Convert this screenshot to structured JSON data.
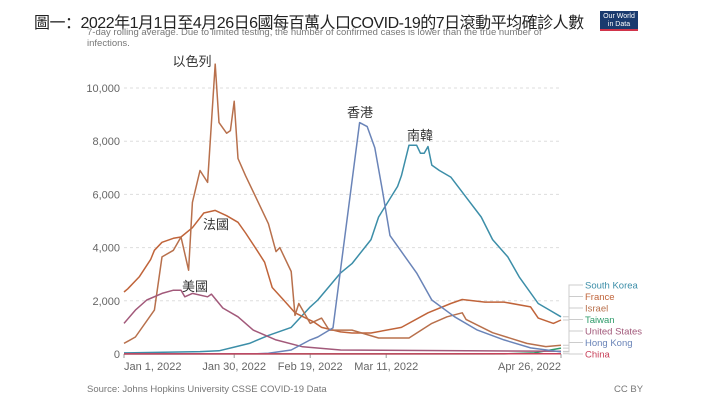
{
  "title": "圖一：2022年1月1日至4月26日6國每百萬人口COVID-19的7日滾動平均確診人數",
  "subtitle": "7-day rolling average. Due to limited testing, the number of confirmed cases is lower than the true number of infections.",
  "logo": "Our World in Data",
  "source": "Source: Johns Hopkins University CSSE COVID-19 Data",
  "license": "CC BY",
  "chart_data": {
    "type": "line",
    "title": "圖一：2022年1月1日至4月26日6國每百萬人口COVID-19的7日滾動平均確診人數",
    "xlim": [
      "2022-01-01",
      "2022-04-26"
    ],
    "ylim": [
      0,
      10000
    ],
    "grid": true,
    "legend": "right",
    "x_ticks": [
      "Jan 1, 2022",
      "Jan 30, 2022",
      "Feb 19, 2022",
      "Mar 11, 2022",
      "Apr 26, 2022"
    ],
    "x_tick_dates": [
      "2022-01-01",
      "2022-01-30",
      "2022-02-19",
      "2022-03-11",
      "2022-04-26"
    ],
    "y_ticks": [
      "0",
      "2,000",
      "4,000",
      "6,000",
      "8,000",
      "10,000"
    ],
    "y_tick_values": [
      0,
      2000,
      4000,
      6000,
      8000,
      10000
    ],
    "annotations": [
      {
        "text": "以色列",
        "series": "Israel"
      },
      {
        "text": "法國",
        "series": "France"
      },
      {
        "text": "美國",
        "series": "United States"
      },
      {
        "text": "香港",
        "series": "Hong Kong"
      },
      {
        "text": "南韓",
        "series": "South Korea"
      }
    ],
    "series": [
      {
        "name": "South Korea",
        "color": "#3c8ea8",
        "points": [
          [
            "2022-01-01",
            40
          ],
          [
            "2022-01-21",
            90
          ],
          [
            "2022-01-26",
            120
          ],
          [
            "2022-01-30",
            260
          ],
          [
            "2022-02-03",
            400
          ],
          [
            "2022-02-08",
            700
          ],
          [
            "2022-02-14",
            1000
          ],
          [
            "2022-02-19",
            1770
          ],
          [
            "2022-02-21",
            2030
          ],
          [
            "2022-02-27",
            3050
          ],
          [
            "2022-03-02",
            3400
          ],
          [
            "2022-03-07",
            4300
          ],
          [
            "2022-03-09",
            5150
          ],
          [
            "2022-03-14",
            6300
          ],
          [
            "2022-03-15",
            6700
          ],
          [
            "2022-03-17",
            7850
          ],
          [
            "2022-03-19",
            7850
          ],
          [
            "2022-03-20",
            7550
          ],
          [
            "2022-03-21",
            7550
          ],
          [
            "2022-03-22",
            7800
          ],
          [
            "2022-03-23",
            7100
          ],
          [
            "2022-03-25",
            6900
          ],
          [
            "2022-03-28",
            6650
          ],
          [
            "2022-04-01",
            5900
          ],
          [
            "2022-04-05",
            5150
          ],
          [
            "2022-04-08",
            4300
          ],
          [
            "2022-04-12",
            3650
          ],
          [
            "2022-04-15",
            2900
          ],
          [
            "2022-04-20",
            1900
          ],
          [
            "2022-04-23",
            1650
          ],
          [
            "2022-04-26",
            1400
          ]
        ]
      },
      {
        "name": "France",
        "color": "#c0643a",
        "points": [
          [
            "2022-01-01",
            2330
          ],
          [
            "2022-01-02",
            2450
          ],
          [
            "2022-01-05",
            2900
          ],
          [
            "2022-01-08",
            3550
          ],
          [
            "2022-01-09",
            3900
          ],
          [
            "2022-01-11",
            4200
          ],
          [
            "2022-01-14",
            4350
          ],
          [
            "2022-01-16",
            4400
          ],
          [
            "2022-01-19",
            4750
          ],
          [
            "2022-01-22",
            5300
          ],
          [
            "2022-01-25",
            5400
          ],
          [
            "2022-01-28",
            5200
          ],
          [
            "2022-01-31",
            4950
          ],
          [
            "2022-02-02",
            4550
          ],
          [
            "2022-02-05",
            3900
          ],
          [
            "2022-02-07",
            3450
          ],
          [
            "2022-02-09",
            2500
          ],
          [
            "2022-02-12",
            2030
          ],
          [
            "2022-02-15",
            1550
          ],
          [
            "2022-02-20",
            1200
          ],
          [
            "2022-02-22",
            1000
          ],
          [
            "2022-02-27",
            830
          ],
          [
            "2022-03-02",
            790
          ],
          [
            "2022-03-07",
            790
          ],
          [
            "2022-03-15",
            1000
          ],
          [
            "2022-03-22",
            1550
          ],
          [
            "2022-03-28",
            1900
          ],
          [
            "2022-03-31",
            2050
          ],
          [
            "2022-04-06",
            1950
          ],
          [
            "2022-04-11",
            1950
          ],
          [
            "2022-04-18",
            1770
          ],
          [
            "2022-04-20",
            1350
          ],
          [
            "2022-04-24",
            1150
          ],
          [
            "2022-04-26",
            1280
          ]
        ]
      },
      {
        "name": "Israel",
        "color": "#b8704c",
        "points": [
          [
            "2022-01-01",
            400
          ],
          [
            "2022-01-04",
            640
          ],
          [
            "2022-01-09",
            1650
          ],
          [
            "2022-01-11",
            3650
          ],
          [
            "2022-01-14",
            3900
          ],
          [
            "2022-01-16",
            4400
          ],
          [
            "2022-01-18",
            3150
          ],
          [
            "2022-01-19",
            5700
          ],
          [
            "2022-01-21",
            6900
          ],
          [
            "2022-01-23",
            6450
          ],
          [
            "2022-01-25",
            10900
          ],
          [
            "2022-01-26",
            8700
          ],
          [
            "2022-01-28",
            8300
          ],
          [
            "2022-01-29",
            8400
          ],
          [
            "2022-01-30",
            9500
          ],
          [
            "2022-01-31",
            7350
          ],
          [
            "2022-02-02",
            6700
          ],
          [
            "2022-02-05",
            5800
          ],
          [
            "2022-02-08",
            4900
          ],
          [
            "2022-02-10",
            3850
          ],
          [
            "2022-02-11",
            4000
          ],
          [
            "2022-02-14",
            3100
          ],
          [
            "2022-02-15",
            1450
          ],
          [
            "2022-02-16",
            1900
          ],
          [
            "2022-02-19",
            1150
          ],
          [
            "2022-02-22",
            1350
          ],
          [
            "2022-02-24",
            900
          ],
          [
            "2022-03-02",
            900
          ],
          [
            "2022-03-09",
            600
          ],
          [
            "2022-03-17",
            600
          ],
          [
            "2022-03-23",
            1150
          ],
          [
            "2022-03-27",
            1400
          ],
          [
            "2022-03-31",
            1550
          ],
          [
            "2022-04-01",
            1300
          ],
          [
            "2022-04-08",
            800
          ],
          [
            "2022-04-17",
            400
          ],
          [
            "2022-04-22",
            280
          ],
          [
            "2022-04-26",
            330
          ]
        ]
      },
      {
        "name": "Taiwan",
        "color": "#2e9b6a",
        "points": [
          [
            "2022-01-01",
            2
          ],
          [
            "2022-04-11",
            5
          ],
          [
            "2022-04-19",
            40
          ],
          [
            "2022-04-26",
            220
          ]
        ]
      },
      {
        "name": "United States",
        "color": "#a2597a",
        "points": [
          [
            "2022-01-01",
            1150
          ],
          [
            "2022-01-04",
            1650
          ],
          [
            "2022-01-07",
            2030
          ],
          [
            "2022-01-11",
            2280
          ],
          [
            "2022-01-14",
            2400
          ],
          [
            "2022-01-16",
            2400
          ],
          [
            "2022-01-17",
            2150
          ],
          [
            "2022-01-19",
            2280
          ],
          [
            "2022-01-23",
            2150
          ],
          [
            "2022-01-24",
            2250
          ],
          [
            "2022-01-27",
            1730
          ],
          [
            "2022-01-31",
            1400
          ],
          [
            "2022-02-04",
            900
          ],
          [
            "2022-02-10",
            530
          ],
          [
            "2022-02-17",
            270
          ],
          [
            "2022-02-27",
            150
          ],
          [
            "2022-04-26",
            100
          ]
        ]
      },
      {
        "name": "Hong Kong",
        "color": "#6a84b8",
        "points": [
          [
            "2022-01-01",
            5
          ],
          [
            "2022-02-05",
            10
          ],
          [
            "2022-02-08",
            30
          ],
          [
            "2022-02-14",
            150
          ],
          [
            "2022-02-19",
            530
          ],
          [
            "2022-02-21",
            640
          ],
          [
            "2022-02-25",
            980
          ],
          [
            "2022-03-04",
            8700
          ],
          [
            "2022-03-06",
            8550
          ],
          [
            "2022-03-08",
            7750
          ],
          [
            "2022-03-10",
            6150
          ],
          [
            "2022-03-12",
            4450
          ],
          [
            "2022-03-15",
            3850
          ],
          [
            "2022-03-19",
            3050
          ],
          [
            "2022-03-23",
            2030
          ],
          [
            "2022-03-29",
            1400
          ],
          [
            "2022-04-04",
            900
          ],
          [
            "2022-04-11",
            530
          ],
          [
            "2022-04-18",
            230
          ],
          [
            "2022-04-26",
            80
          ]
        ]
      },
      {
        "name": "China",
        "color": "#c8415a",
        "points": [
          [
            "2022-01-01",
            3
          ],
          [
            "2022-04-26",
            8
          ]
        ]
      }
    ]
  }
}
